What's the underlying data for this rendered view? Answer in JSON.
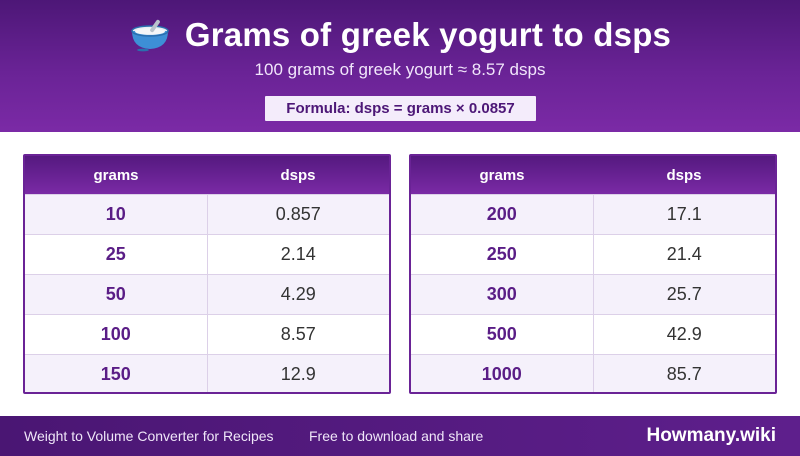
{
  "header": {
    "icon": "bowl-icon",
    "title": "Grams of greek yogurt to dsps",
    "subtitle": "100 grams of greek yogurt ≈ 8.57 dsps",
    "formula": "Formula: dsps = grams × 0.0857"
  },
  "tables": [
    {
      "col_grams": "grams",
      "col_dsps": "dsps",
      "rows": [
        {
          "grams": "10",
          "dsps": "0.857"
        },
        {
          "grams": "25",
          "dsps": "2.14"
        },
        {
          "grams": "50",
          "dsps": "4.29"
        },
        {
          "grams": "100",
          "dsps": "8.57"
        },
        {
          "grams": "150",
          "dsps": "12.9"
        }
      ]
    },
    {
      "col_grams": "grams",
      "col_dsps": "dsps",
      "rows": [
        {
          "grams": "200",
          "dsps": "17.1"
        },
        {
          "grams": "250",
          "dsps": "21.4"
        },
        {
          "grams": "300",
          "dsps": "25.7"
        },
        {
          "grams": "500",
          "dsps": "42.9"
        },
        {
          "grams": "1000",
          "dsps": "85.7"
        }
      ]
    }
  ],
  "footer": {
    "left_text": "Weight to Volume Converter for Recipes",
    "middle_text": "Free to download and share",
    "brand": "Howmany.wiki"
  },
  "colors": {
    "primary": "#6a2396",
    "dark_primary": "#4d1777",
    "row_alt": "#f5f1fb"
  }
}
